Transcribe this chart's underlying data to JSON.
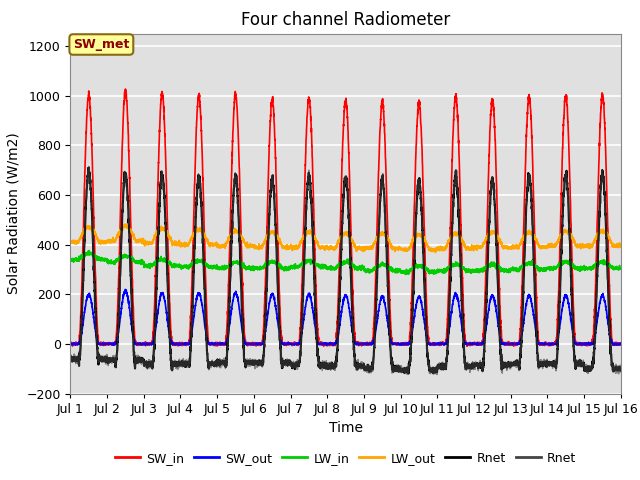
{
  "title": "Four channel Radiometer",
  "xlabel": "Time",
  "ylabel": "Solar Radiation (W/m2)",
  "ylim": [
    -200,
    1250
  ],
  "xlim": [
    0,
    15
  ],
  "xtick_labels": [
    "Jul 1",
    "Jul 2",
    "Jul 3",
    "Jul 4",
    "Jul 5",
    "Jul 6",
    "Jul 7",
    "Jul 8",
    "Jul 9",
    "Jul 10",
    "Jul 11",
    "Jul 12",
    "Jul 13",
    "Jul 14",
    "Jul 15",
    "Jul 16"
  ],
  "xtick_positions": [
    0,
    1,
    2,
    3,
    4,
    5,
    6,
    7,
    8,
    9,
    10,
    11,
    12,
    13,
    14,
    15
  ],
  "annotation_text": "SW_met",
  "annotation_color": "#8B0000",
  "annotation_bg": "#FFFF99",
  "annotation_border": "#8B6914",
  "series": [
    {
      "name": "SW_in",
      "color": "#FF0000",
      "linewidth": 1.2
    },
    {
      "name": "SW_out",
      "color": "#0000FF",
      "linewidth": 1.2
    },
    {
      "name": "LW_in",
      "color": "#00CC00",
      "linewidth": 1.2
    },
    {
      "name": "LW_out",
      "color": "#FFA500",
      "linewidth": 1.2
    },
    {
      "name": "Rnet",
      "color": "#000000",
      "linewidth": 1.5
    },
    {
      "name": "Rnet",
      "color": "#444444",
      "linewidth": 1.0
    }
  ],
  "legend_colors": [
    "#FF0000",
    "#0000FF",
    "#00CC00",
    "#FFA500",
    "#000000",
    "#444444"
  ],
  "legend_names": [
    "SW_in",
    "SW_out",
    "LW_in",
    "LW_out",
    "Rnet",
    "Rnet"
  ],
  "grid_color": "#FFFFFF",
  "bg_color": "#E0E0E0",
  "title_fontsize": 12,
  "axis_fontsize": 10,
  "tick_fontsize": 9,
  "sw_in_peaks": [
    1000,
    1020,
    1010,
    1000,
    1005,
    980,
    990,
    985,
    975,
    970,
    1000,
    985,
    995,
    1000,
    1000
  ],
  "sw_out_peaks": [
    200,
    215,
    205,
    205,
    205,
    200,
    200,
    195,
    190,
    190,
    200,
    195,
    195,
    195,
    195
  ],
  "lw_in_base": [
    340,
    330,
    315,
    310,
    305,
    305,
    310,
    305,
    295,
    290,
    295,
    295,
    300,
    305,
    305
  ],
  "lw_out_base": [
    410,
    415,
    405,
    400,
    395,
    390,
    390,
    385,
    385,
    380,
    385,
    390,
    390,
    395,
    395
  ],
  "rnet_night": [
    -60,
    -65,
    -80,
    -80,
    -75,
    -75,
    -85,
    -90,
    -100,
    -105,
    -90,
    -85,
    -80,
    -80,
    -100
  ]
}
